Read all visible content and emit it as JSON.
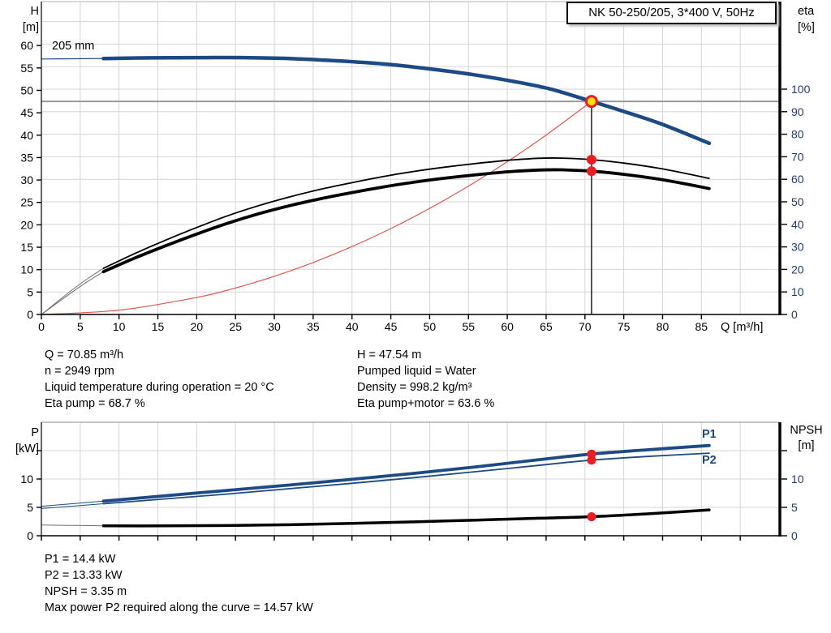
{
  "title_box": {
    "text": "NK 50-250/205, 3*400 V, 50Hz"
  },
  "labels": {
    "impeller": "205 mm",
    "h_axis_1": "H",
    "h_axis_2": "[m]",
    "eta_axis_1": "eta",
    "eta_axis_2": "[%]",
    "q_axis": "Q [m³/h]",
    "p_axis_1": "P",
    "p_axis_2": "[kW]",
    "npsh_axis_1": "NPSH",
    "npsh_axis_2": "[m]",
    "p1": "P1",
    "p2": "P2"
  },
  "info_block": {
    "left": [
      "Q = 70.85 m³/h",
      "n = 2949 rpm",
      "Liquid temperature during operation = 20 °C",
      "Eta pump = 68.7 %"
    ],
    "right": [
      "H = 47.54 m",
      "Pumped liquid = Water",
      "Density = 998.2 kg/m³",
      "Eta pump+motor = 63.6 %"
    ]
  },
  "result_block": [
    "P1 = 14.4 kW",
    "P2 = 13.33 kW",
    "NPSH = 3.35 m",
    "Max power P2 required along the curve = 14.57 kW"
  ],
  "colors": {
    "curve_blue": "#1b4a84",
    "curve_black": "#000000",
    "lead_gray": "#6e6e6e",
    "system_red": "#e0564e",
    "marker_red": "#ec1c24",
    "marker_yellow": "#ffe000",
    "grid": "#d6d6d6",
    "duty_grid": "#9a9a9a",
    "axis": "#000000",
    "right_tick_text": "#233a66",
    "top_border": "#b5b5b5"
  },
  "chart_data": [
    {
      "type": "line",
      "title": "NK 50-250/205, 3*400 V, 50Hz",
      "xlabel": "Q [m³/h]",
      "ylabel_left": "H [m]",
      "ylabel_right": "eta [%]",
      "x_range": [
        0,
        95
      ],
      "y_left_range": [
        0,
        69.8
      ],
      "y_right_range": [
        0,
        138.85
      ],
      "x_grid_step": 5,
      "x_grid_max": 90,
      "h_grid": {
        "axis": "right",
        "step": 10,
        "max": 130
      },
      "x_ticks": [
        {
          "v": 0,
          "t": "0"
        },
        {
          "v": 5,
          "t": "5"
        },
        {
          "v": 10,
          "t": "10"
        },
        {
          "v": 15,
          "t": "15"
        },
        {
          "v": 20,
          "t": "20"
        },
        {
          "v": 25,
          "t": "25"
        },
        {
          "v": 30,
          "t": "30"
        },
        {
          "v": 35,
          "t": "35"
        },
        {
          "v": 40,
          "t": "40"
        },
        {
          "v": 45,
          "t": "45"
        },
        {
          "v": 50,
          "t": "50"
        },
        {
          "v": 55,
          "t": "55"
        },
        {
          "v": 60,
          "t": "60"
        },
        {
          "v": 65,
          "t": "65"
        },
        {
          "v": 70,
          "t": "70"
        },
        {
          "v": 75,
          "t": "75"
        },
        {
          "v": 80,
          "t": "80"
        },
        {
          "v": 85,
          "t": "85"
        }
      ],
      "y_ticks_left": [
        {
          "v": 0,
          "t": "0"
        },
        {
          "v": 5,
          "t": "5"
        },
        {
          "v": 10,
          "t": "10"
        },
        {
          "v": 15,
          "t": "15"
        },
        {
          "v": 20,
          "t": "20"
        },
        {
          "v": 25,
          "t": "25"
        },
        {
          "v": 30,
          "t": "30"
        },
        {
          "v": 35,
          "t": "35"
        },
        {
          "v": 40,
          "t": "40"
        },
        {
          "v": 45,
          "t": "45"
        },
        {
          "v": 50,
          "t": "50"
        },
        {
          "v": 55,
          "t": "55"
        },
        {
          "v": 60,
          "t": "60"
        }
      ],
      "y_ticks_right": [
        {
          "v": 0,
          "t": "0"
        },
        {
          "v": 10,
          "t": "10"
        },
        {
          "v": 20,
          "t": "20"
        },
        {
          "v": 30,
          "t": "30"
        },
        {
          "v": 40,
          "t": "40"
        },
        {
          "v": 50,
          "t": "50"
        },
        {
          "v": 60,
          "t": "60"
        },
        {
          "v": 70,
          "t": "70"
        },
        {
          "v": 80,
          "t": "80"
        },
        {
          "v": 90,
          "t": "90"
        },
        {
          "v": 100,
          "t": "100"
        }
      ],
      "duty": {
        "q": 70.85,
        "h": 47.54
      },
      "series": [
        {
          "name": "system-curve",
          "axis": "left",
          "color": "system_red",
          "width": 1.2,
          "points": [
            [
              0,
              0
            ],
            [
              10,
              0.95
            ],
            [
              20,
              3.79
            ],
            [
              25,
              5.92
            ],
            [
              30,
              8.52
            ],
            [
              35,
              11.6
            ],
            [
              40,
              15.15
            ],
            [
              45,
              19.17
            ],
            [
              50,
              23.67
            ],
            [
              55,
              28.64
            ],
            [
              60,
              34.09
            ],
            [
              65,
              40.01
            ],
            [
              70.85,
              47.54
            ]
          ]
        },
        {
          "name": "eta-pump-motor-lead",
          "axis": "right",
          "color": "lead_gray",
          "width": 1,
          "points": [
            [
              0,
              0
            ],
            [
              2,
              5
            ],
            [
              4,
              10
            ],
            [
              6,
              14.7
            ],
            [
              8,
              19
            ]
          ]
        },
        {
          "name": "eta-pump-lead",
          "axis": "right",
          "color": "lead_gray",
          "width": 1,
          "points": [
            [
              0,
              0
            ],
            [
              2,
              5.5
            ],
            [
              4,
              11
            ],
            [
              6,
              16
            ],
            [
              8,
              20.5
            ]
          ]
        },
        {
          "name": "eta-pump-motor-curve",
          "axis": "right",
          "color": "curve_black",
          "width": 3.8,
          "points": [
            [
              8,
              19
            ],
            [
              12,
              25
            ],
            [
              16,
              30.5
            ],
            [
              20,
              35.7
            ],
            [
              24,
              40.5
            ],
            [
              28,
              44.7
            ],
            [
              32,
              48.3
            ],
            [
              36,
              51.4
            ],
            [
              40,
              54.1
            ],
            [
              44,
              56.6
            ],
            [
              48,
              58.7
            ],
            [
              52,
              60.5
            ],
            [
              56,
              62
            ],
            [
              60,
              63.3
            ],
            [
              64,
              64.1
            ],
            [
              67,
              64.2
            ],
            [
              70.85,
              63.6
            ],
            [
              75,
              62.2
            ],
            [
              80,
              59.8
            ],
            [
              86,
              55.9
            ]
          ]
        },
        {
          "name": "eta-pump-curve",
          "axis": "right",
          "color": "curve_black",
          "width": 1.8,
          "points": [
            [
              8,
              20.5
            ],
            [
              12,
              27
            ],
            [
              16,
              33
            ],
            [
              20,
              38.6
            ],
            [
              24,
              43.8
            ],
            [
              28,
              48.3
            ],
            [
              32,
              52.2
            ],
            [
              36,
              55.6
            ],
            [
              40,
              58.5
            ],
            [
              44,
              61.2
            ],
            [
              48,
              63.5
            ],
            [
              52,
              65.4
            ],
            [
              56,
              67
            ],
            [
              60,
              68.4
            ],
            [
              64,
              69.3
            ],
            [
              67,
              69.4
            ],
            [
              70.85,
              68.7
            ],
            [
              75,
              67.2
            ],
            [
              80,
              64.6
            ],
            [
              86,
              60.4
            ]
          ]
        },
        {
          "name": "hq-curve-lead",
          "axis": "left",
          "color": "curve_blue",
          "width": 1.2,
          "points": [
            [
              0,
              57.0
            ],
            [
              4,
              57.05
            ],
            [
              8,
              57.1
            ]
          ]
        },
        {
          "name": "hq-curve",
          "axis": "left",
          "color": "curve_blue",
          "width": 4.5,
          "points": [
            [
              8,
              57.1
            ],
            [
              14,
              57.25
            ],
            [
              20,
              57.3
            ],
            [
              26,
              57.3
            ],
            [
              32,
              57.1
            ],
            [
              38,
              56.6
            ],
            [
              44,
              55.9
            ],
            [
              50,
              54.8
            ],
            [
              56,
              53.4
            ],
            [
              62,
              51.6
            ],
            [
              66,
              50.1
            ],
            [
              70.85,
              47.54
            ],
            [
              75,
              45.3
            ],
            [
              80,
              42.4
            ],
            [
              86,
              38.2
            ]
          ]
        }
      ],
      "markers": [
        {
          "q": 70.85,
          "v": 68.7,
          "axis": "right",
          "style": "red",
          "r": 6
        },
        {
          "q": 70.85,
          "v": 63.6,
          "axis": "right",
          "style": "red",
          "r": 6
        }
      ]
    },
    {
      "type": "line",
      "xlabel": "Q [m³/h]",
      "ylabel_left": "P [kW]",
      "ylabel_right": "NPSH [m]",
      "x_range": [
        0,
        95
      ],
      "y_left_range": [
        0,
        20
      ],
      "y_right_range": [
        0,
        20
      ],
      "x_grid_step": 5,
      "x_grid_max": 90,
      "h_grid": {
        "axis": "left",
        "step": 5,
        "max": 15
      },
      "x_ticks": [
        {
          "v": 0,
          "t": ""
        },
        {
          "v": 5,
          "t": ""
        },
        {
          "v": 10,
          "t": ""
        },
        {
          "v": 15,
          "t": ""
        },
        {
          "v": 20,
          "t": ""
        },
        {
          "v": 25,
          "t": ""
        },
        {
          "v": 30,
          "t": ""
        },
        {
          "v": 35,
          "t": ""
        },
        {
          "v": 40,
          "t": ""
        },
        {
          "v": 45,
          "t": ""
        },
        {
          "v": 50,
          "t": ""
        },
        {
          "v": 55,
          "t": ""
        },
        {
          "v": 60,
          "t": ""
        },
        {
          "v": 65,
          "t": ""
        },
        {
          "v": 70,
          "t": ""
        },
        {
          "v": 75,
          "t": ""
        },
        {
          "v": 80,
          "t": ""
        },
        {
          "v": 85,
          "t": ""
        },
        {
          "v": 90,
          "t": ""
        }
      ],
      "y_ticks_left": [
        {
          "v": 0,
          "t": "0"
        },
        {
          "v": 5,
          "t": "5"
        },
        {
          "v": 10,
          "t": "10"
        },
        {
          "v": 15,
          "t": ""
        }
      ],
      "y_ticks_right": [
        {
          "v": 0,
          "t": "0"
        },
        {
          "v": 5,
          "t": "5"
        },
        {
          "v": 10,
          "t": "10"
        },
        {
          "v": 15,
          "t": ""
        }
      ],
      "duty": null,
      "series": [
        {
          "name": "npsh-curve-lead",
          "axis": "right",
          "color": "lead_gray",
          "width": 1,
          "points": [
            [
              0,
              1.9
            ],
            [
              4,
              1.82
            ],
            [
              8,
              1.76
            ]
          ]
        },
        {
          "name": "npsh-curve",
          "axis": "right",
          "color": "curve_black",
          "width": 3.5,
          "points": [
            [
              8,
              1.76
            ],
            [
              16,
              1.74
            ],
            [
              24,
              1.8
            ],
            [
              32,
              1.95
            ],
            [
              40,
              2.18
            ],
            [
              48,
              2.45
            ],
            [
              56,
              2.76
            ],
            [
              64,
              3.08
            ],
            [
              70.85,
              3.35
            ],
            [
              78,
              3.85
            ],
            [
              86,
              4.55
            ]
          ]
        },
        {
          "name": "p2-curve-lead",
          "axis": "left",
          "color": "curve_blue",
          "width": 1,
          "points": [
            [
              0,
              4.8
            ],
            [
              4,
              5.22
            ],
            [
              8,
              5.65
            ]
          ]
        },
        {
          "name": "p2-curve",
          "axis": "left",
          "color": "curve_blue",
          "width": 1.8,
          "points": [
            [
              8,
              5.65
            ],
            [
              16,
              6.5
            ],
            [
              24,
              7.35
            ],
            [
              32,
              8.3
            ],
            [
              40,
              9.25
            ],
            [
              48,
              10.25
            ],
            [
              56,
              11.3
            ],
            [
              64,
              12.4
            ],
            [
              70.85,
              13.33
            ],
            [
              78,
              13.97
            ],
            [
              86,
              14.55
            ]
          ]
        },
        {
          "name": "p1-curve-lead",
          "axis": "left",
          "color": "curve_blue",
          "width": 1,
          "points": [
            [
              0,
              5.2
            ],
            [
              4,
              5.65
            ],
            [
              8,
              6.1
            ]
          ]
        },
        {
          "name": "p1-curve",
          "axis": "left",
          "color": "curve_blue",
          "width": 3.8,
          "points": [
            [
              8,
              6.1
            ],
            [
              16,
              7.05
            ],
            [
              24,
              8.0
            ],
            [
              32,
              8.95
            ],
            [
              40,
              9.95
            ],
            [
              48,
              11.0
            ],
            [
              56,
              12.15
            ],
            [
              64,
              13.4
            ],
            [
              70.85,
              14.4
            ],
            [
              78,
              15.15
            ],
            [
              86,
              15.9
            ]
          ]
        }
      ],
      "markers": [
        {
          "q": 70.85,
          "v": 14.4,
          "axis": "left",
          "style": "red",
          "r": 5.5
        },
        {
          "q": 70.85,
          "v": 13.33,
          "axis": "left",
          "style": "red",
          "r": 5.5
        },
        {
          "q": 70.85,
          "v": 3.35,
          "axis": "right",
          "style": "red",
          "r": 5.5
        }
      ]
    }
  ]
}
